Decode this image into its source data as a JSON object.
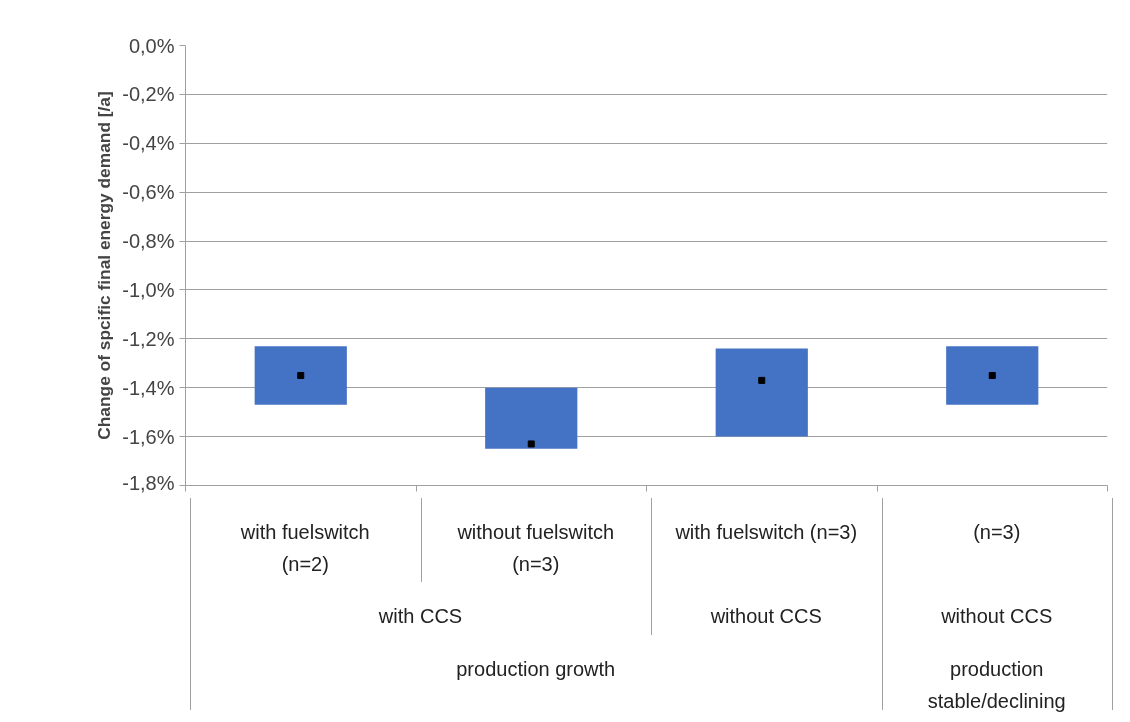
{
  "chart_data": {
    "type": "bar",
    "ylabel": "Change of spcific final energy demand [/a]",
    "categories": [
      "with  fuelswitch\n(n=2)",
      "without fuelswitch\n(n=3)",
      "with fuelswitch (n=3)",
      "(n=3)"
    ],
    "series": [
      {
        "color": "#4472c4",
        "base": [
          -1.23,
          -1.4,
          -1.24,
          -1.23
        ],
        "values": [
          -0.24,
          -0.25,
          -0.36,
          -0.24
        ]
      },
      {
        "type": "scatter",
        "color": "#000000",
        "x": [
          "with  fuelswitch\n(n=2)",
          "without fuelswitch\n(n=3)",
          "with fuelswitch (n=3)",
          "(n=3)"
        ],
        "values": [
          -1.35,
          -1.63,
          -1.37,
          -1.35
        ]
      }
    ],
    "annotations": [
      "with CCS",
      "without CCS",
      "without CCS",
      "production growth",
      "production\nstable/declining"
    ],
    "ylim": [
      -1.8,
      0.0
    ],
    "yticks": [
      {
        "value": 0.0,
        "label": "0,0%"
      },
      {
        "value": -0.2,
        "label": "-0,2%"
      },
      {
        "value": -0.4,
        "label": "-0,4%"
      },
      {
        "value": -0.6,
        "label": "-0,6%"
      },
      {
        "value": -0.8,
        "label": "-0,8%"
      },
      {
        "value": -1.0,
        "label": "-1,0%"
      },
      {
        "value": -1.2,
        "label": "-1,2%"
      },
      {
        "value": -1.4,
        "label": "-1,4%"
      },
      {
        "value": -1.6,
        "label": "-1,6%"
      },
      {
        "value": -1.8,
        "label": "-1,8%"
      }
    ],
    "grid": "y",
    "marker": "square"
  }
}
